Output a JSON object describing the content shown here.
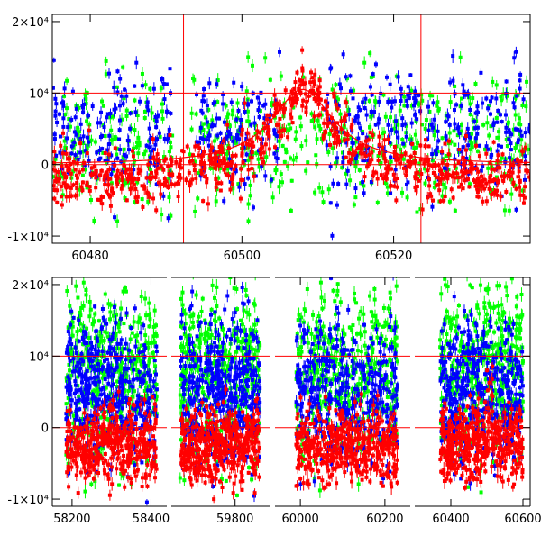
{
  "colors": {
    "green": "#00ff00",
    "blue": "#0000ff",
    "red": "#ff0000",
    "frame": "#000000",
    "refline": "#ff0000",
    "background": "#ffffff"
  },
  "chart_data": [
    {
      "type": "scatter",
      "title": "",
      "xlabel": "",
      "ylabel": "",
      "xlim": [
        60475,
        60538
      ],
      "ylim": [
        -11000,
        21000
      ],
      "xticks": [
        {
          "value": 60480,
          "label": "60480"
        },
        {
          "value": 60500,
          "label": "60500"
        },
        {
          "value": 60520,
          "label": "60520"
        }
      ],
      "yticks": [
        {
          "value": 20000,
          "label": "2×10⁴"
        },
        {
          "value": 10000,
          "label": "10⁴"
        },
        {
          "value": 0,
          "label": "0"
        },
        {
          "value": -10000,
          "label": "-1×10⁴"
        }
      ],
      "hlines": [
        10000,
        0
      ],
      "vlines": [
        60492.3,
        60523.6
      ],
      "series": [
        {
          "color": "green",
          "segments": [
            [
              60475,
              60491
            ],
            [
              60493,
              60538
            ]
          ],
          "center": 3000,
          "spread": 9000,
          "density": 10
        },
        {
          "color": "blue",
          "segments": [
            [
              60475,
              60491
            ],
            [
              60494,
              60505
            ],
            [
              60511,
              60538
            ]
          ],
          "center": 5000,
          "spread": 9000,
          "density": 10
        },
        {
          "color": "red",
          "segments": [
            [
              60475,
              60538
            ]
          ],
          "center": -2500,
          "spread": 4000,
          "density": 12
        }
      ],
      "model_curve": {
        "peak_x": 60508,
        "peak_y": 10500,
        "baseline": 0,
        "timescale": 5
      }
    },
    {
      "type": "scatter",
      "title": "",
      "xlabel": "",
      "ylabel": "",
      "x_segments": [
        {
          "xlim": [
            58150,
            58440
          ],
          "xticks": [
            {
              "value": 58200,
              "label": "58200"
            },
            {
              "value": 58400,
              "label": "58400"
            }
          ]
        },
        {
          "xlim": [
            59620,
            59900
          ],
          "xticks": [
            {
              "value": 59800,
              "label": "59800"
            }
          ]
        },
        {
          "xlim": [
            59940,
            60260
          ],
          "xticks": [
            {
              "value": 60000,
              "label": "60000"
            },
            {
              "value": 60200,
              "label": "60200"
            }
          ]
        },
        {
          "xlim": [
            60300,
            60620
          ],
          "xticks": [
            {
              "value": 60400,
              "label": "60400"
            },
            {
              "value": 60600,
              "label": "60600"
            }
          ]
        }
      ],
      "ylim": [
        -11000,
        21000
      ],
      "yticks": [
        {
          "value": 20000,
          "label": "2×10⁴"
        },
        {
          "value": 10000,
          "label": "10⁴"
        },
        {
          "value": 0,
          "label": "0"
        },
        {
          "value": -10000,
          "label": "-1×10⁴"
        }
      ],
      "hlines": [
        10000,
        0
      ],
      "seasons": [
        {
          "x": [
            58185,
            58415
          ]
        },
        {
          "x": [
            59645,
            59870
          ]
        },
        {
          "x": [
            59990,
            60230
          ]
        },
        {
          "x": [
            60370,
            60600
          ]
        }
      ],
      "series": [
        {
          "color": "green",
          "center": 8000,
          "spread": 12000
        },
        {
          "color": "blue",
          "center": 5000,
          "spread": 10000
        },
        {
          "color": "red",
          "center": -2500,
          "spread": 5000
        }
      ],
      "highlight_peak_x": 60508
    }
  ]
}
